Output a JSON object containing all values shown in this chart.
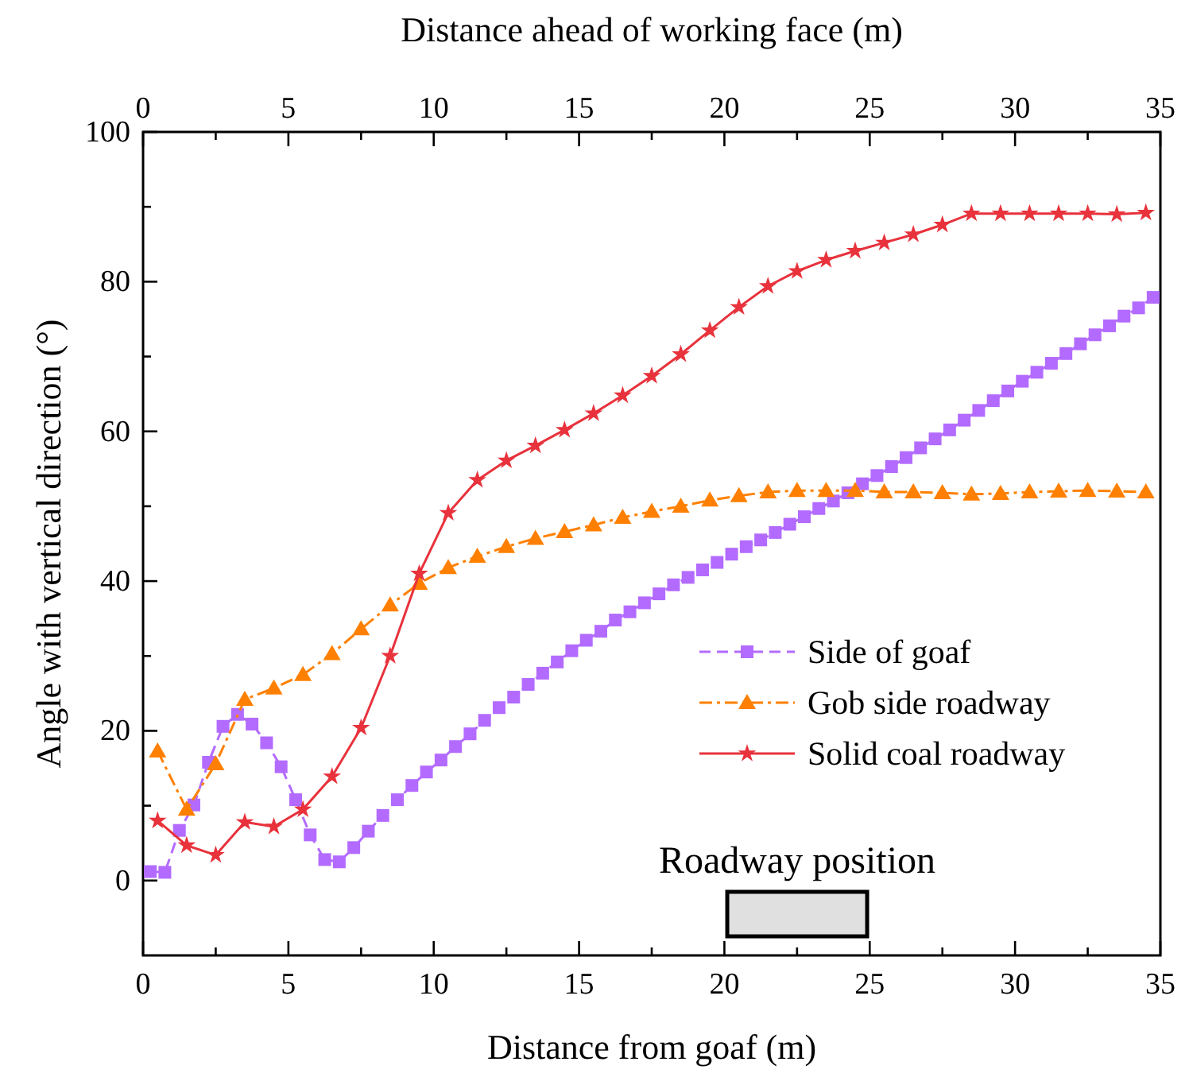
{
  "chart_data": {
    "type": "line",
    "xlabel": "Distance from goaf (m)",
    "x2label": "Distance ahead of working face (m)",
    "ylabel": "Angle with vertical direction (°)",
    "xlim": [
      0,
      35
    ],
    "xticks": [
      0,
      {
        "value": 2.5,
        "label": null
      },
      5,
      {
        "value": 7.5,
        "label": null
      },
      10,
      {
        "value": 12.5,
        "label": null
      },
      15,
      {
        "value": 17.5,
        "label": null
      },
      20,
      {
        "value": 22.5,
        "label": null
      },
      25,
      {
        "value": 27.5,
        "label": null
      },
      30,
      {
        "value": 32.5,
        "label": null
      },
      35
    ],
    "x2lim": [
      0,
      35
    ],
    "x2ticks": [
      0,
      {
        "value": 2.5,
        "label": null
      },
      5,
      {
        "value": 7.5,
        "label": null
      },
      10,
      {
        "value": 12.5,
        "label": null
      },
      15,
      {
        "value": 17.5,
        "label": null
      },
      20,
      {
        "value": 22.5,
        "label": null
      },
      25,
      {
        "value": 27.5,
        "label": null
      },
      30,
      {
        "value": 32.5,
        "label": null
      },
      35
    ],
    "ylim": [
      -10,
      100
    ],
    "yticks": [
      0,
      {
        "value": 10,
        "label": null
      },
      20,
      {
        "value": 30,
        "label": null
      },
      40,
      {
        "value": 50,
        "label": null
      },
      60,
      {
        "value": 70,
        "label": null
      },
      80,
      {
        "value": 90,
        "label": null
      },
      100
    ],
    "grid": false,
    "legend": "bottom right",
    "annotations": [
      "Roadway position"
    ],
    "series": [
      {
        "name": "Side of goaf",
        "color": "#b36bff",
        "marker": "square",
        "line_style": "dashed",
        "x": [
          0.25,
          0.75,
          1.25,
          1.75,
          2.25,
          2.75,
          3.25,
          3.75,
          4.25,
          4.75,
          5.25,
          5.75,
          6.25,
          6.75,
          7.25,
          7.75,
          8.25,
          8.75,
          9.25,
          9.75,
          10.25,
          10.75,
          11.25,
          11.75,
          12.25,
          12.75,
          13.25,
          13.75,
          14.25,
          14.75,
          15.25,
          15.75,
          16.25,
          16.75,
          17.25,
          17.75,
          18.25,
          18.75,
          19.25,
          19.75,
          20.25,
          20.75,
          21.25,
          21.75,
          22.25,
          22.75,
          23.25,
          23.75,
          24.25,
          24.75,
          25.25,
          25.75,
          26.25,
          26.75,
          27.25,
          27.75,
          28.25,
          28.75,
          29.25,
          29.75,
          30.25,
          30.75,
          31.25,
          31.75,
          32.25,
          32.75,
          33.25,
          33.75,
          34.25,
          34.75
        ],
        "values": [
          1.2,
          1.1,
          6.7,
          10.1,
          15.8,
          20.6,
          22.2,
          20.9,
          18.4,
          15.2,
          10.8,
          6.1,
          2.8,
          2.5,
          4.4,
          6.6,
          8.7,
          10.8,
          12.7,
          14.5,
          16.1,
          17.9,
          19.6,
          21.4,
          23.1,
          24.5,
          26.2,
          27.7,
          29.2,
          30.7,
          32.1,
          33.3,
          34.8,
          35.9,
          37.1,
          38.3,
          39.5,
          40.5,
          41.5,
          42.5,
          43.6,
          44.6,
          45.5,
          46.5,
          47.6,
          48.6,
          49.7,
          50.7,
          51.8,
          53.0,
          54.1,
          55.3,
          56.5,
          57.8,
          59.0,
          60.2,
          61.5,
          62.8,
          64.1,
          65.4,
          66.7,
          67.9,
          69.1,
          70.4,
          71.7,
          72.9,
          74.1,
          75.4,
          76.5,
          77.9
        ]
      },
      {
        "name": "Gob side roadway",
        "color": "#ff8000",
        "marker": "triangle",
        "line_style": "dashdot",
        "x": [
          0.5,
          1.5,
          2.5,
          3.5,
          4.5,
          5.5,
          6.5,
          7.5,
          8.5,
          9.5,
          10.5,
          11.5,
          12.5,
          13.5,
          14.5,
          15.5,
          16.5,
          17.5,
          18.5,
          19.5,
          20.5,
          21.5,
          22.5,
          23.5,
          24.5,
          25.5,
          26.5,
          27.5,
          28.5,
          29.5,
          30.5,
          31.5,
          32.5,
          33.5,
          34.5
        ],
        "values": [
          17.3,
          9.5,
          15.6,
          24.2,
          25.7,
          27.5,
          30.3,
          33.6,
          36.8,
          39.7,
          41.8,
          43.3,
          44.6,
          45.7,
          46.6,
          47.5,
          48.5,
          49.3,
          50.0,
          50.8,
          51.4,
          51.9,
          52.1,
          52.1,
          52.1,
          51.9,
          51.9,
          51.8,
          51.6,
          51.7,
          51.9,
          52.0,
          52.1,
          52.0,
          51.9
        ]
      },
      {
        "name": "Solid coal roadway",
        "color": "#e8323c",
        "marker": "star",
        "line_style": "solid",
        "x": [
          0.5,
          1.5,
          2.5,
          3.5,
          4.5,
          5.5,
          6.5,
          7.5,
          8.5,
          9.5,
          10.5,
          11.5,
          12.5,
          13.5,
          14.5,
          15.5,
          16.5,
          17.5,
          18.5,
          19.5,
          20.5,
          21.5,
          22.5,
          23.5,
          24.5,
          25.5,
          26.5,
          27.5,
          28.5,
          29.5,
          30.5,
          31.5,
          32.5,
          33.5,
          34.5
        ],
        "values": [
          8.0,
          4.7,
          3.4,
          7.8,
          7.2,
          9.5,
          13.9,
          20.4,
          30.0,
          41.0,
          49.1,
          53.5,
          56.1,
          58.1,
          60.2,
          62.4,
          64.8,
          67.4,
          70.3,
          73.5,
          76.6,
          79.4,
          81.4,
          82.9,
          84.1,
          85.2,
          86.3,
          87.6,
          89.1,
          89.1,
          89.1,
          89.1,
          89.1,
          89.0,
          89.2
        ]
      }
    ]
  }
}
